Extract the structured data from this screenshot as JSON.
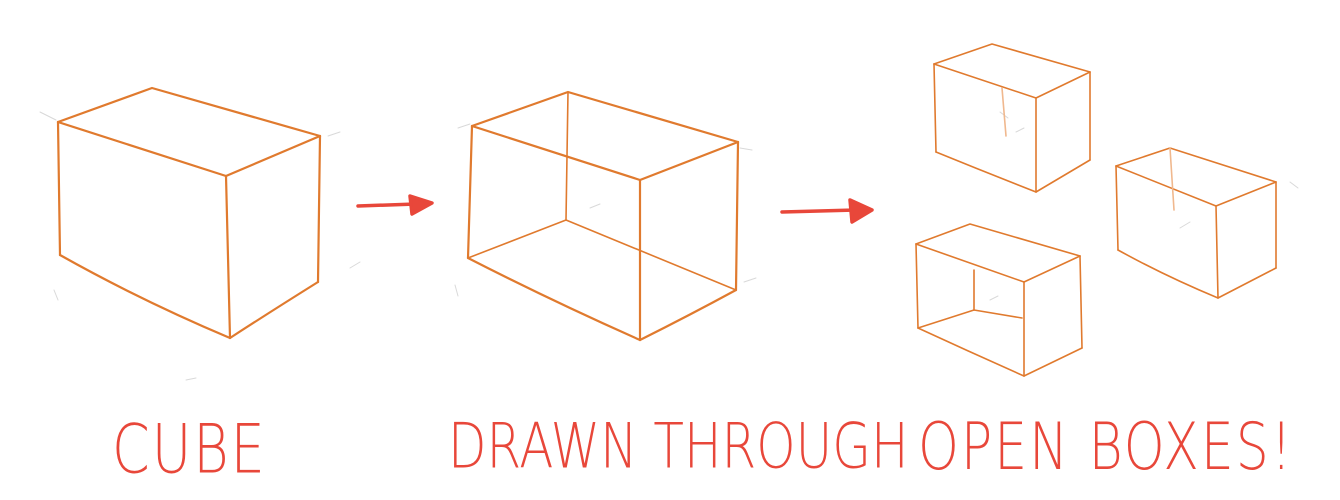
{
  "captions": {
    "cube": "CUBE",
    "drawn_through": "DRAWN THROUGH",
    "open_boxes": "OPEN BOXES!"
  },
  "colors": {
    "box_line": "#e07a2e",
    "arrow": "#e8473a",
    "caption": "#e8473a",
    "guide": "#d9d9d9"
  }
}
